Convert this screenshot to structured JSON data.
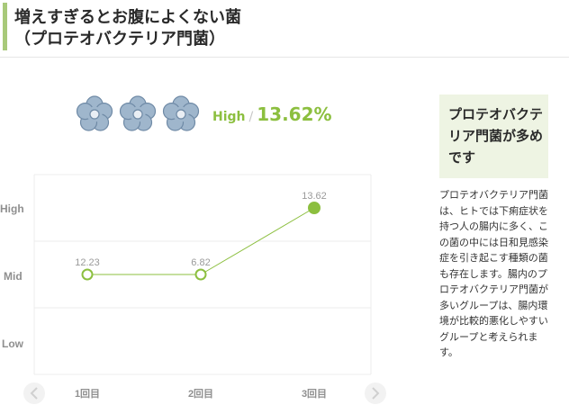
{
  "header": {
    "title_line1": "増えすぎるとお腹によくない菌",
    "title_line2": "（プロテオバクテリア門菌）",
    "accent_color": "#a8c97a"
  },
  "level": {
    "label": "High",
    "separator": "/",
    "percent": "13.62%",
    "flower_icons": [
      "flower-icon",
      "flower-icon",
      "flower-icon"
    ],
    "flower_color": "#9fb6cc",
    "value_color": "#8cbf3f"
  },
  "chart_data": {
    "type": "line",
    "categories": [
      "1回目",
      "2回目",
      "3回目"
    ],
    "values": [
      12.23,
      6.82,
      13.62
    ],
    "value_labels": [
      "12.23",
      "6.82",
      "13.62"
    ],
    "levels": [
      "Mid",
      "Mid",
      "High"
    ],
    "y_bands": [
      "High",
      "Mid",
      "Low"
    ],
    "title": "",
    "xlabel": "",
    "ylabel": "",
    "grid": true,
    "line_color": "#8cbf3f"
  },
  "nav": {
    "prev_icon": "chevron-left-icon",
    "next_icon": "chevron-right-icon"
  },
  "side": {
    "heading": "プロテオバクテリア門菌が多めです",
    "body": "プロテオバクテリア門菌は、ヒトでは下痢症状を持つ人の腸内に多く、この菌の中には日和見感染症を引き起こす種類の菌も存在します。腸内のプロテオバクテリア門菌が多いグループは、腸内環境が比較的悪化しやすいグループと考えられます。"
  }
}
